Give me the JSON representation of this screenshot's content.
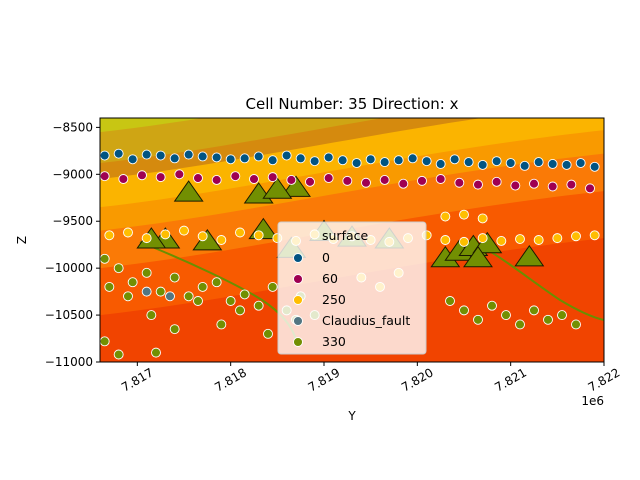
{
  "chart_data": {
    "type": "scatter",
    "title": "Cell Number: 35 Direction: x",
    "xlabel": "Y",
    "ylabel": "Z",
    "x_offset_label": "1e6",
    "xlim": [
      7816600,
      7822000
    ],
    "ylim": [
      -11000,
      -8400
    ],
    "x_ticks": [
      7817000,
      7818000,
      7819000,
      7820000,
      7821000,
      7822000
    ],
    "x_tick_labels": [
      "7.817",
      "7.818",
      "7.819",
      "7.820",
      "7.821",
      "7.822"
    ],
    "y_ticks": [
      -8500,
      -9000,
      -9500,
      -10000,
      -10500,
      -11000
    ],
    "y_tick_labels": [
      "−8500",
      "−9000",
      "−9500",
      "−10000",
      "−10500",
      "−11000"
    ],
    "grid": false,
    "legend": {
      "title": "surface",
      "placement": "center",
      "entries": [
        {
          "label": "0",
          "color": "#015482"
        },
        {
          "label": "60",
          "color": "#9f0052"
        },
        {
          "label": "250",
          "color": "#ffbe00"
        },
        {
          "label": "Claudius_fault",
          "color": "#527682"
        },
        {
          "label": "330",
          "color": "#728f02"
        }
      ]
    },
    "background_layers": [
      {
        "color": "#c8c613",
        "y_at_left": -8400
      },
      {
        "color": "#cfa514",
        "y_at_left": -8550
      },
      {
        "color": "#d58a0e",
        "y_at_left": -8880
      },
      {
        "color": "#fbb400",
        "y_at_left": -9050
      },
      {
        "color": "#f99a00",
        "y_at_left": -9350
      },
      {
        "color": "#fa7a06",
        "y_at_left": -9600
      },
      {
        "color": "#f85a00",
        "y_at_left": -10000
      },
      {
        "color": "#f14400",
        "y_at_left": -10500
      }
    ],
    "orientation_points": [
      {
        "x": 7817550,
        "y": -9200
      },
      {
        "x": 7818300,
        "y": -9220
      },
      {
        "x": 7818700,
        "y": -9150
      },
      {
        "x": 7818500,
        "y": -9170
      },
      {
        "x": 7818350,
        "y": -9600
      },
      {
        "x": 7817750,
        "y": -9720
      },
      {
        "x": 7817300,
        "y": -9700
      },
      {
        "x": 7817150,
        "y": -9700
      },
      {
        "x": 7818650,
        "y": -9800
      },
      {
        "x": 7819000,
        "y": -9620
      },
      {
        "x": 7819300,
        "y": -9680
      },
      {
        "x": 7819700,
        "y": -9700
      },
      {
        "x": 7820300,
        "y": -9900
      },
      {
        "x": 7820450,
        "y": -9830
      },
      {
        "x": 7820600,
        "y": -9780
      },
      {
        "x": 7820750,
        "y": -9750
      },
      {
        "x": 7820650,
        "y": -9900
      },
      {
        "x": 7821200,
        "y": -9890
      }
    ],
    "series": [
      {
        "name": "0",
        "color": "#015482",
        "x": [
          7816650,
          7816800,
          7816950,
          7817100,
          7817250,
          7817400,
          7817550,
          7817700,
          7817850,
          7818000,
          7818150,
          7818300,
          7818450,
          7818600,
          7818750,
          7818900,
          7819050,
          7819200,
          7819350,
          7819500,
          7819650,
          7819800,
          7819950,
          7820100,
          7820250,
          7820400,
          7820550,
          7820700,
          7820850,
          7821000,
          7821150,
          7821300,
          7821450,
          7821600,
          7821750,
          7821900
        ],
        "y": [
          -8800,
          -8780,
          -8840,
          -8790,
          -8800,
          -8830,
          -8790,
          -8810,
          -8820,
          -8840,
          -8830,
          -8810,
          -8850,
          -8800,
          -8830,
          -8860,
          -8820,
          -8850,
          -8880,
          -8840,
          -8870,
          -8850,
          -8830,
          -8860,
          -8890,
          -8840,
          -8870,
          -8900,
          -8860,
          -8880,
          -8910,
          -8870,
          -8890,
          -8900,
          -8880,
          -8920
        ]
      },
      {
        "name": "60",
        "color": "#9f0052",
        "x": [
          7816650,
          7816850,
          7817050,
          7817250,
          7817450,
          7817650,
          7817850,
          7818050,
          7818250,
          7818450,
          7818650,
          7818850,
          7819050,
          7819250,
          7819450,
          7819650,
          7819850,
          7820050,
          7820250,
          7820450,
          7820650,
          7820850,
          7821050,
          7821250,
          7821450,
          7821650,
          7821850
        ],
        "y": [
          -9020,
          -9050,
          -9010,
          -9030,
          -9000,
          -9040,
          -9060,
          -9020,
          -9050,
          -9030,
          -9060,
          -9080,
          -9040,
          -9070,
          -9090,
          -9060,
          -9100,
          -9070,
          -9050,
          -9090,
          -9110,
          -9080,
          -9120,
          -9100,
          -9130,
          -9110,
          -9150
        ]
      },
      {
        "name": "250",
        "color": "#ffbe00",
        "x": [
          7816700,
          7816900,
          7817100,
          7817300,
          7817500,
          7817700,
          7817900,
          7818100,
          7818300,
          7818500,
          7818700,
          7818900,
          7819100,
          7819300,
          7819500,
          7819700,
          7819900,
          7820100,
          7820300,
          7820500,
          7820700,
          7820900,
          7821100,
          7821300,
          7821500,
          7821700,
          7821900,
          7820300,
          7820500,
          7820700,
          7819400,
          7819600,
          7819800
        ],
        "y": [
          -9650,
          -9620,
          -9680,
          -9640,
          -9600,
          -9660,
          -9700,
          -9620,
          -9650,
          -9680,
          -9710,
          -9640,
          -9690,
          -9660,
          -9700,
          -9720,
          -9680,
          -9650,
          -9700,
          -9720,
          -9680,
          -9710,
          -9690,
          -9700,
          -9680,
          -9660,
          -9650,
          -9450,
          -9430,
          -9470,
          -10100,
          -10200,
          -10050
        ]
      },
      {
        "name": "Claudius_fault",
        "color": "#527682",
        "x": [
          7817100,
          7817350
        ],
        "y": [
          -10250,
          -10300
        ]
      },
      {
        "name": "330",
        "color": "#728f02",
        "x": [
          7816650,
          7816800,
          7816950,
          7817100,
          7817250,
          7817400,
          7817550,
          7817700,
          7817850,
          7818000,
          7818150,
          7818300,
          7818450,
          7818600,
          7818750,
          7818900,
          7820350,
          7820500,
          7820650,
          7820800,
          7820950,
          7821100,
          7821250,
          7821400,
          7821550,
          7821700,
          7816700,
          7816900,
          7817150,
          7817400,
          7817650,
          7817900,
          7818100,
          7818400,
          7818700,
          7816650,
          7816800,
          7817200
        ],
        "y": [
          -9900,
          -10000,
          -10150,
          -10050,
          -10250,
          -10100,
          -10300,
          -10200,
          -10150,
          -10350,
          -10280,
          -10400,
          -10200,
          -10450,
          -10300,
          -10500,
          -10350,
          -10450,
          -10550,
          -10400,
          -10500,
          -10600,
          -10450,
          -10550,
          -10500,
          -10600,
          -10200,
          -10300,
          -10500,
          -10650,
          -10350,
          -10600,
          -10450,
          -10700,
          -10550,
          -10780,
          -10920,
          -10900
        ]
      }
    ]
  }
}
